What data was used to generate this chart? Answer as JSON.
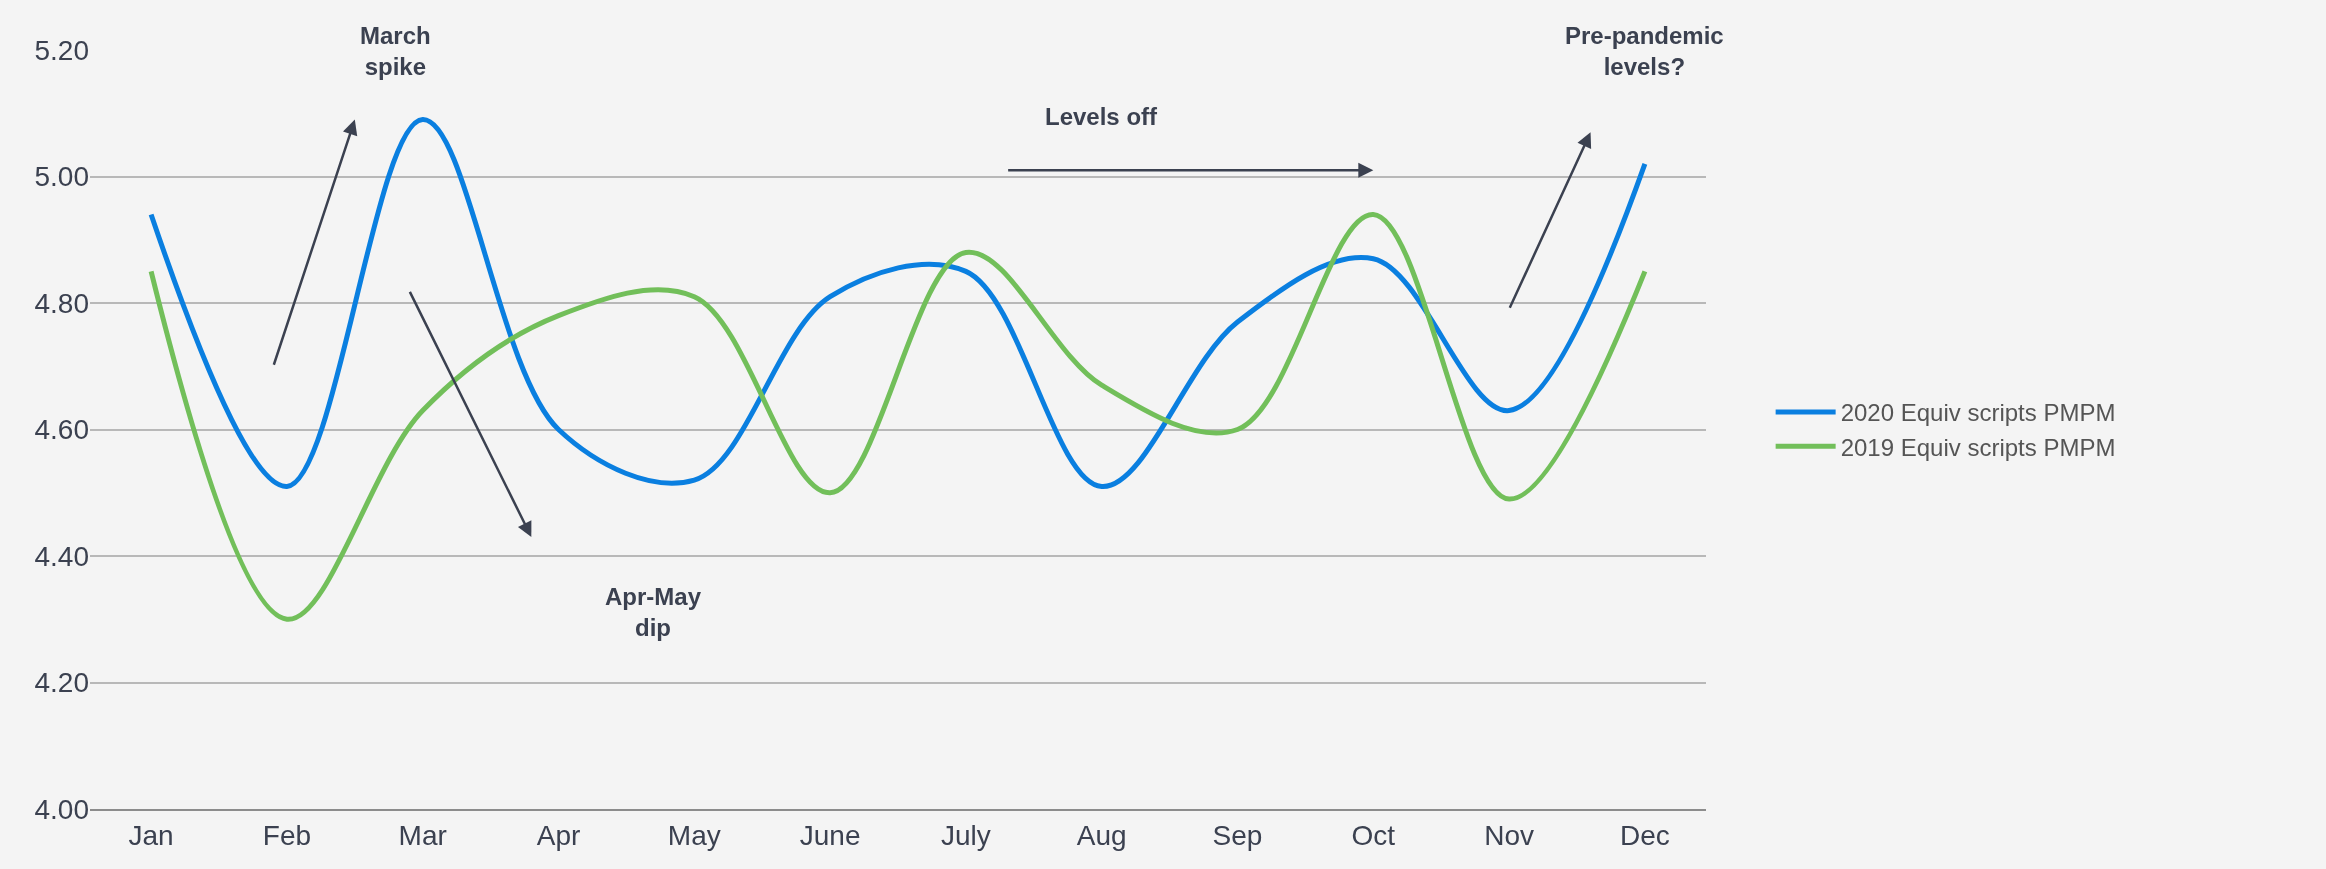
{
  "chart_data": {
    "type": "line",
    "categories": [
      "Jan",
      "Feb",
      "Mar",
      "Apr",
      "May",
      "June",
      "July",
      "Aug",
      "Sep",
      "Oct",
      "Nov",
      "Dec"
    ],
    "series": [
      {
        "name": "2020 Equiv scripts PMPM",
        "color": "#0a7fe0",
        "values": [
          4.94,
          4.51,
          5.09,
          4.6,
          4.52,
          4.81,
          4.85,
          4.51,
          4.77,
          4.87,
          4.63,
          5.02
        ]
      },
      {
        "name": "2019 Equiv scripts PMPM",
        "color": "#72bf5a",
        "values": [
          4.85,
          4.3,
          4.63,
          4.78,
          4.81,
          4.5,
          4.88,
          4.67,
          4.6,
          4.94,
          4.49,
          4.85
        ]
      }
    ],
    "ylim": [
      4.0,
      5.2
    ],
    "yticks": [
      {
        "value": 4.0,
        "label": "4.00"
      },
      {
        "value": 4.2,
        "label": "4.20"
      },
      {
        "value": 4.4,
        "label": "4.40"
      },
      {
        "value": 4.6,
        "label": "4.60"
      },
      {
        "value": 4.8,
        "label": "4.80"
      },
      {
        "value": 5.0,
        "label": "5.00"
      },
      {
        "value": 5.2,
        "label": "5.20"
      }
    ],
    "grid": "y",
    "legend": "right",
    "marker": "none",
    "line_style": "solid",
    "annotations": [
      "March\nspike",
      "Apr-May\ndip",
      "Levels off",
      "Pre-pandemic\nlevels?"
    ]
  }
}
